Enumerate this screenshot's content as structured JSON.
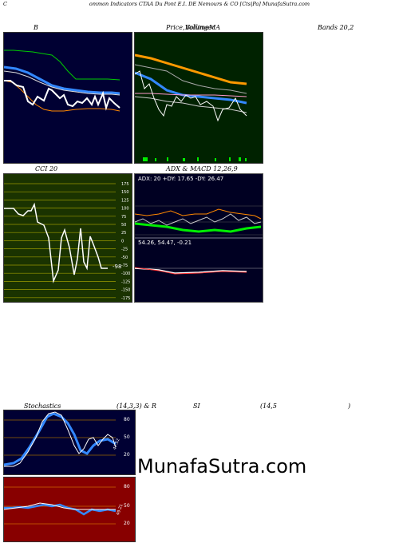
{
  "header": {
    "prefix": "C",
    "title_mid": "ommon  Indicators CTAA Du  Pont E.I. DE Nemours & CO [Cts|Pa] MunafaSutra.com"
  },
  "labels": {
    "b": "B",
    "price": "Price,",
    "overlap1": "Volume",
    "overlap2": "Bollinger",
    "ma": "MA",
    "bands": "Bands 20,2",
    "cci": "CCI 20",
    "adx_macd": "ADX  & MACD 12,26,9",
    "stoch": "Stochastics",
    "stoch_params": "(14,3,3) & R",
    "si": "SI",
    "rsi_param": "(14,5",
    "close_paren": ")"
  },
  "adx": {
    "readout": "ADX: 20  +DY: 17.65 -DY: 26.47"
  },
  "macd": {
    "readout": "54.26,  54.47,  -0.21"
  },
  "cci": {
    "levels": [
      "175",
      "150",
      "125",
      "100",
      "75",
      "50",
      "25",
      "0",
      "-25",
      "-50",
      "-75",
      "-100",
      "-125",
      "-150",
      "-175"
    ],
    "value": "-98"
  },
  "stochastics": {
    "levels": [
      "80",
      "50",
      "20"
    ],
    "value": "47.52"
  },
  "rsi": {
    "levels": [
      "80",
      "50",
      "20"
    ],
    "value": "49.21"
  },
  "watermark": "MunafaSutra.com",
  "colors": {
    "navy_bg": "#000033",
    "green_bg": "#002200",
    "cci_bg": "#1a3300",
    "rsi_bg": "#880000",
    "orange": "#ff8800",
    "blue": "#3388ff",
    "bright_green": "#00cc00"
  }
}
